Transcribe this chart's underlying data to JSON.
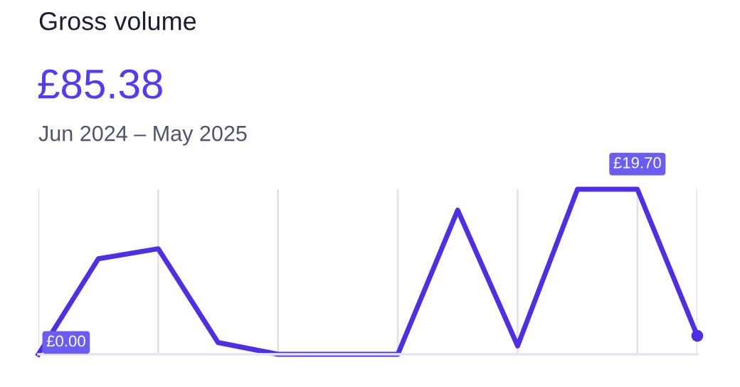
{
  "chart_data": {
    "type": "line",
    "title": "Gross volume",
    "subtitle": "£85.38",
    "annotations": [
      "Jun 2024 – May 2025"
    ],
    "categories": [
      null,
      null,
      null,
      null,
      null,
      null,
      null,
      null,
      null,
      null,
      null,
      null
    ],
    "series": [
      {
        "color": "#4f2ee8",
        "values": [
          0,
          11.4,
          12.6,
          1.4,
          0,
          0,
          0,
          17.2,
          1.0,
          19.7,
          19.7,
          2.2
        ],
        "value_labels": [
          "£0.00",
          null,
          null,
          null,
          null,
          null,
          null,
          null,
          null,
          null,
          "£19.70",
          null
        ]
      }
    ],
    "ylim": [
      0,
      19.7
    ],
    "grid": "x",
    "legend": false
  }
}
